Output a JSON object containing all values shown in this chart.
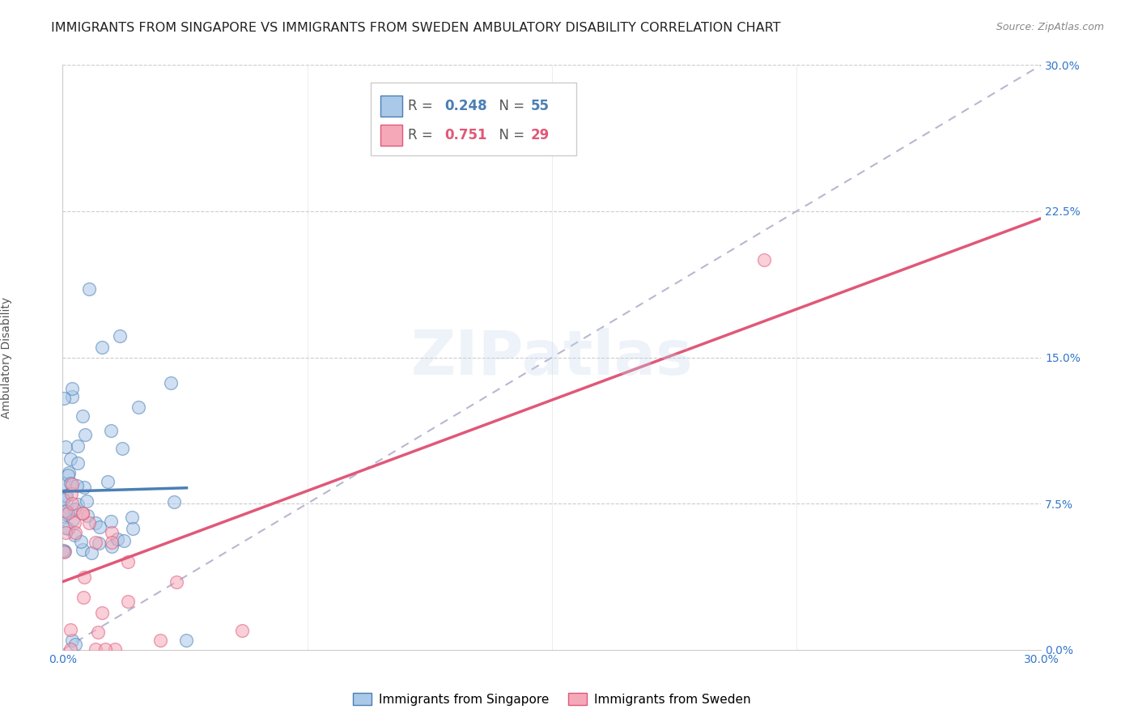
{
  "title": "IMMIGRANTS FROM SINGAPORE VS IMMIGRANTS FROM SWEDEN AMBULATORY DISABILITY CORRELATION CHART",
  "source": "Source: ZipAtlas.com",
  "ylabel": "Ambulatory Disability",
  "xlim": [
    0.0,
    0.3
  ],
  "ylim": [
    0.0,
    0.3
  ],
  "ytick_vals": [
    0.0,
    0.075,
    0.15,
    0.225,
    0.3
  ],
  "ytick_labels": [
    "0.0%",
    "7.5%",
    "15.0%",
    "22.5%",
    "30.0%"
  ],
  "xtick_vals": [
    0.0,
    0.075,
    0.15,
    0.225,
    0.3
  ],
  "xtick_labels": [
    "0.0%",
    "",
    "",
    "",
    "30.0%"
  ],
  "grid_yticks": [
    0.075,
    0.15,
    0.225,
    0.3
  ],
  "watermark": "ZIPatlas",
  "color_singapore": "#aac8e8",
  "color_sweden": "#f5a8b8",
  "color_singapore_line": "#4a7fb5",
  "color_sweden_line": "#e05878",
  "color_diagonal": "#b0b0cc",
  "title_fontsize": 11.5,
  "source_fontsize": 9,
  "axis_label_fontsize": 10,
  "tick_fontsize": 10,
  "legend_fontsize": 11
}
